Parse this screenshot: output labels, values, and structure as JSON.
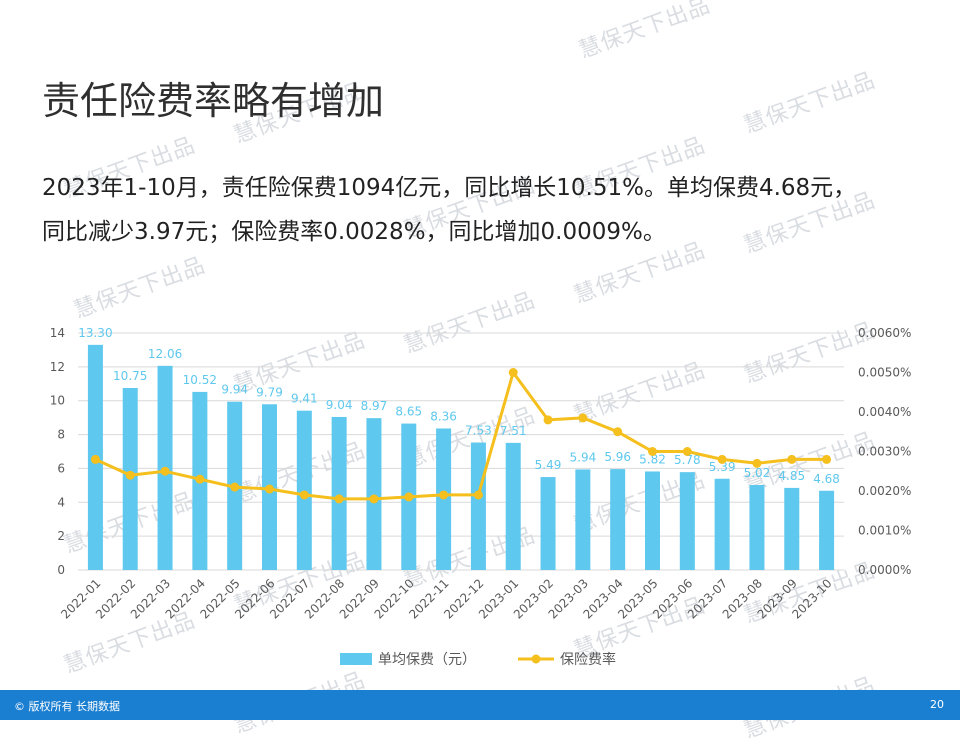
{
  "watermark": "慧保天下出品",
  "title": "责任险费率略有增加",
  "body": {
    "line1": "2023年1-10月，责任险保费1094亿元，同比增长10.51%。单均保费4.68元，",
    "line2": "同比减少3.97元；保险费率0.0028%，同比增加0.0009%。"
  },
  "footer": {
    "copyright": "© 版权所有 长期数据",
    "page_number": "20"
  },
  "colors": {
    "bar": "#5ec8ee",
    "line": "#f5bf1d",
    "bar_label": "#5ec8ee",
    "axis_text": "#595959",
    "gridline": "#d9d9d9",
    "footer_bg": "#1b7fd1"
  },
  "chart_data": {
    "type": "bar+line",
    "categories": [
      "2022-01",
      "2022-02",
      "2022-03",
      "2022-04",
      "2022-05",
      "2022-06",
      "2022-07",
      "2022-08",
      "2022-09",
      "2022-10",
      "2022-11",
      "2022-12",
      "2023-01",
      "2023-02",
      "2023-03",
      "2023-04",
      "2023-05",
      "2023-06",
      "2023-07",
      "2023-08",
      "2023-09",
      "2023-10"
    ],
    "series": [
      {
        "name": "单均保费（元）",
        "type": "bar",
        "axis": "left",
        "values": [
          13.3,
          10.75,
          12.06,
          10.52,
          9.94,
          9.79,
          9.41,
          9.04,
          8.97,
          8.65,
          8.36,
          7.53,
          7.51,
          5.49,
          5.94,
          5.96,
          5.82,
          5.78,
          5.39,
          5.02,
          4.85,
          4.68
        ],
        "labels": [
          "13.30",
          "10.75",
          "12.06",
          "10.52",
          "9.94",
          "9.79",
          "9.41",
          "9.04",
          "8.97",
          "8.65",
          "8.36",
          "7.53",
          "7.51",
          "5.49",
          "5.94",
          "5.96",
          "5.82",
          "5.78",
          "5.39",
          "5.02",
          "4.85",
          "4.68"
        ]
      },
      {
        "name": "保险费率",
        "type": "line",
        "axis": "right",
        "values": [
          0.0028,
          0.0024,
          0.0025,
          0.0023,
          0.0021,
          0.00205,
          0.0019,
          0.0018,
          0.0018,
          0.00185,
          0.0019,
          0.0019,
          0.005,
          0.0038,
          0.00385,
          0.0035,
          0.003,
          0.003,
          0.0028,
          0.0027,
          0.0028,
          0.0028
        ]
      }
    ],
    "y_left": {
      "min": 0,
      "max": 14,
      "ticks": [
        "0",
        "2",
        "4",
        "6",
        "8",
        "10",
        "12",
        "14"
      ]
    },
    "y_right": {
      "min": 0,
      "max": 0.006,
      "ticks": [
        "0.0000%",
        "0.0010%",
        "0.0020%",
        "0.0030%",
        "0.0040%",
        "0.0050%",
        "0.0060%"
      ]
    },
    "legend": {
      "position": "bottom",
      "bar_label": "单均保费（元）",
      "line_label": "保险费率"
    },
    "grid": true
  }
}
